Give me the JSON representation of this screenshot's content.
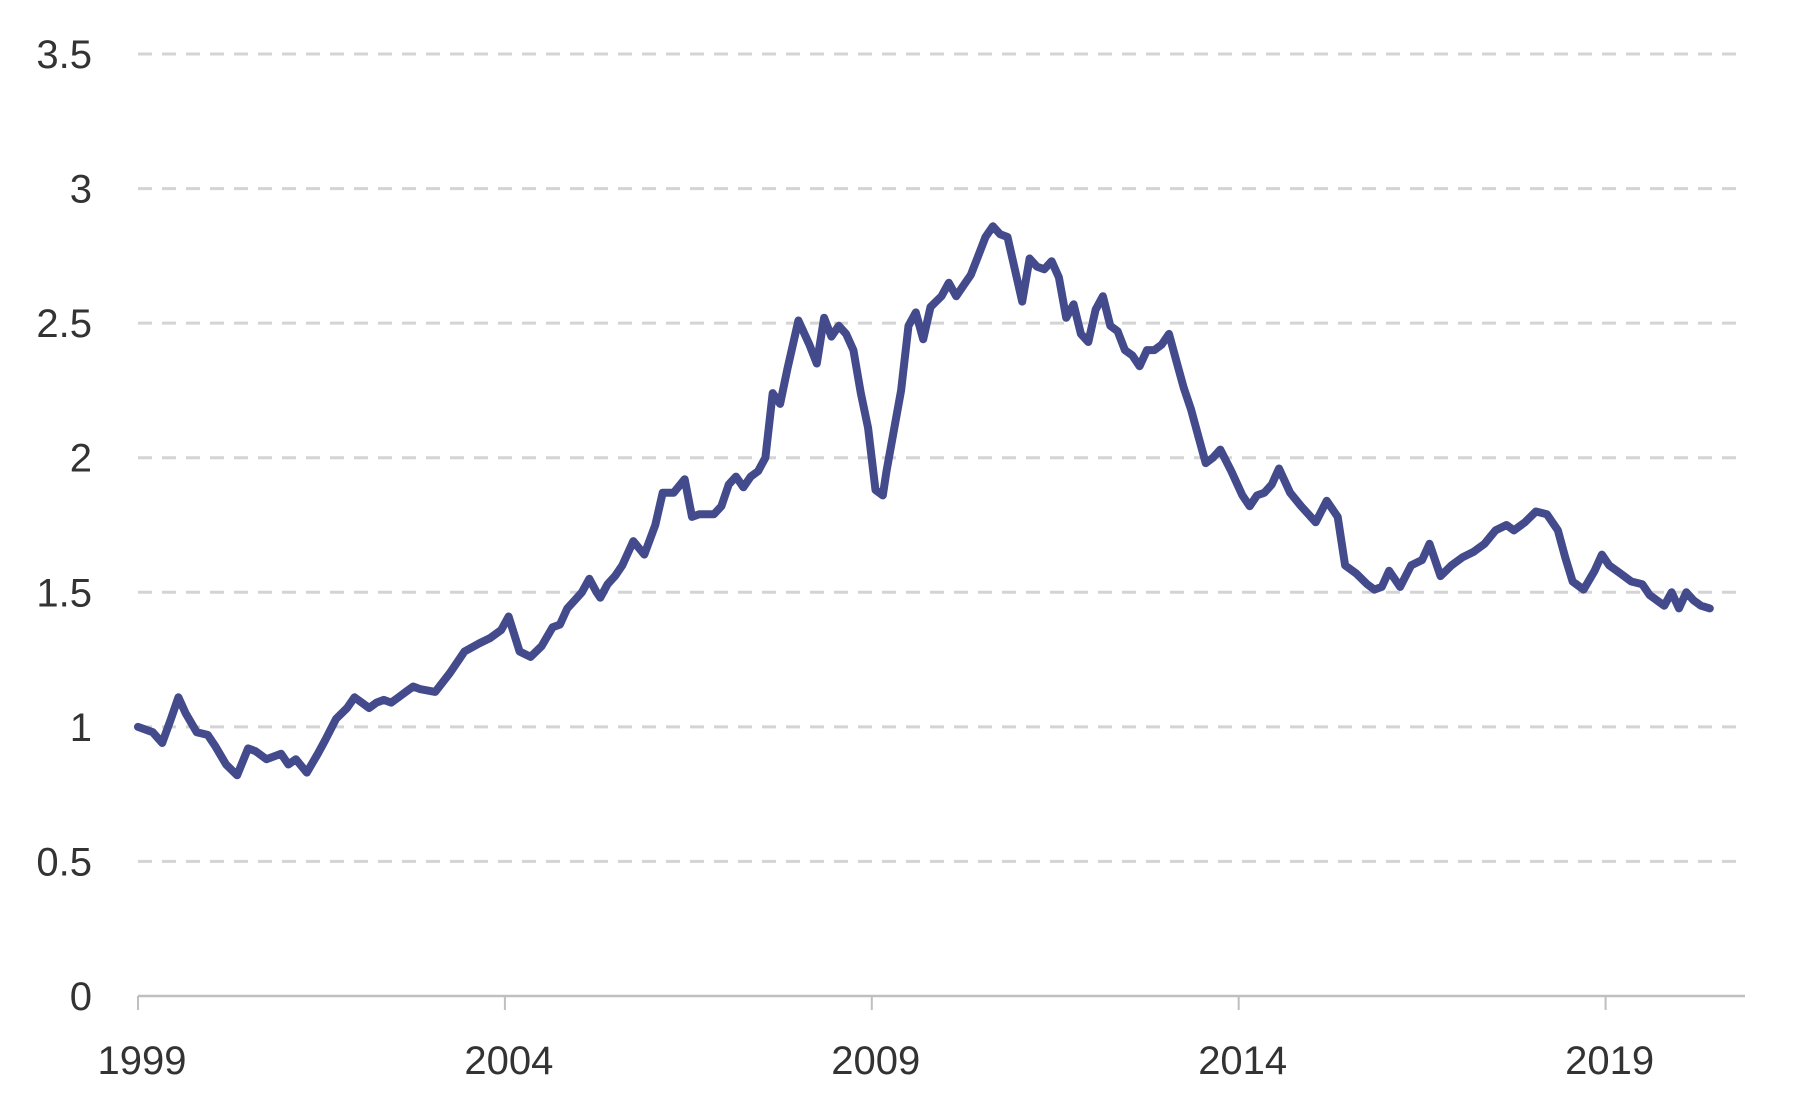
{
  "chart_data": {
    "type": "line",
    "title": "",
    "xlabel": "",
    "ylabel": "",
    "xlim": [
      1999.0,
      2020.9
    ],
    "ylim": [
      0,
      3.5
    ],
    "y_ticks": [
      0,
      0.5,
      1,
      1.5,
      2,
      2.5,
      3,
      3.5
    ],
    "y_tick_labels": [
      "0",
      "0.5",
      "1",
      "1.5",
      "2",
      "2.5",
      "3",
      "3.5"
    ],
    "x_ticks": [
      1999,
      2004,
      2009,
      2014,
      2019
    ],
    "x_tick_labels": [
      "1999",
      "2004",
      "2009",
      "2014",
      "2019"
    ],
    "grid": true,
    "legend": "none",
    "series": [
      {
        "color": "#434b8c",
        "x": [
          1999.0,
          1999.2,
          1999.33,
          1999.45,
          1999.55,
          1999.65,
          1999.8,
          1999.95,
          2000.05,
          2000.2,
          2000.35,
          2000.5,
          2000.6,
          2000.75,
          2000.95,
          2001.05,
          2001.15,
          2001.3,
          2001.45,
          2001.55,
          2001.7,
          2001.85,
          2001.95,
          2002.05,
          2002.15,
          2002.25,
          2002.35,
          2002.45,
          2002.55,
          2002.65,
          2002.75,
          2002.85,
          2003.05,
          2003.25,
          2003.45,
          2003.65,
          2003.8,
          2003.95,
          2004.05,
          2004.2,
          2004.35,
          2004.5,
          2004.65,
          2004.75,
          2004.85,
          2004.95,
          2005.05,
          2005.15,
          2005.25,
          2005.3,
          2005.4,
          2005.5,
          2005.6,
          2005.75,
          2005.9,
          2006.05,
          2006.15,
          2006.3,
          2006.45,
          2006.55,
          2006.65,
          2006.75,
          2006.85,
          2006.95,
          2007.05,
          2007.15,
          2007.25,
          2007.35,
          2007.45,
          2007.55,
          2007.65,
          2007.75,
          2007.85,
          2008.0,
          2008.15,
          2008.25,
          2008.35,
          2008.45,
          2008.55,
          2008.65,
          2008.75,
          2008.85,
          2008.95,
          2009.05,
          2009.15,
          2009.2,
          2009.3,
          2009.4,
          2009.5,
          2009.6,
          2009.7,
          2009.8,
          2009.95,
          2010.05,
          2010.15,
          2010.25,
          2010.35,
          2010.45,
          2010.55,
          2010.65,
          2010.75,
          2010.85,
          2011.05,
          2011.15,
          2011.25,
          2011.35,
          2011.45,
          2011.55,
          2011.65,
          2011.75,
          2011.85,
          2011.95,
          2012.05,
          2012.15,
          2012.25,
          2012.35,
          2012.45,
          2012.55,
          2012.65,
          2012.75,
          2012.85,
          2012.95,
          2013.05,
          2013.15,
          2013.25,
          2013.35,
          2013.45,
          2013.55,
          2013.65,
          2013.75,
          2013.9,
          2014.05,
          2014.15,
          2014.25,
          2014.35,
          2014.45,
          2014.55,
          2014.7,
          2014.85,
          2014.95,
          2015.05,
          2015.2,
          2015.35,
          2015.45,
          2015.6,
          2015.75,
          2015.85,
          2015.95,
          2016.05,
          2016.2,
          2016.35,
          2016.5,
          2016.6,
          2016.75,
          2016.9,
          2017.05,
          2017.2,
          2017.35,
          2017.5,
          2017.65,
          2017.75,
          2017.9,
          2018.05,
          2018.2,
          2018.35,
          2018.45,
          2018.55,
          2018.7,
          2018.85,
          2018.95,
          2019.05,
          2019.2,
          2019.35,
          2019.5,
          2019.6,
          2019.7,
          2019.8,
          2019.9,
          2020.0,
          2020.1,
          2020.2,
          2020.3,
          2020.42
        ],
        "values": [
          1.0,
          0.98,
          0.94,
          1.03,
          1.11,
          1.05,
          0.98,
          0.97,
          0.93,
          0.86,
          0.82,
          0.92,
          0.91,
          0.88,
          0.9,
          0.86,
          0.88,
          0.83,
          0.9,
          0.95,
          1.03,
          1.07,
          1.11,
          1.09,
          1.07,
          1.09,
          1.1,
          1.09,
          1.11,
          1.13,
          1.15,
          1.14,
          1.13,
          1.2,
          1.28,
          1.31,
          1.33,
          1.36,
          1.41,
          1.28,
          1.26,
          1.3,
          1.37,
          1.38,
          1.44,
          1.47,
          1.5,
          1.55,
          1.5,
          1.48,
          1.53,
          1.56,
          1.6,
          1.69,
          1.64,
          1.75,
          1.87,
          1.87,
          1.92,
          1.78,
          1.79,
          1.79,
          1.79,
          1.82,
          1.9,
          1.93,
          1.89,
          1.93,
          1.95,
          2.0,
          2.24,
          2.2,
          2.33,
          2.51,
          2.42,
          2.35,
          2.52,
          2.45,
          2.49,
          2.46,
          2.4,
          2.24,
          2.11,
          1.88,
          1.86,
          1.95,
          2.1,
          2.25,
          2.49,
          2.54,
          2.44,
          2.56,
          2.6,
          2.65,
          2.6,
          2.64,
          2.68,
          2.75,
          2.82,
          2.86,
          2.83,
          2.82,
          2.58,
          2.74,
          2.71,
          2.7,
          2.73,
          2.67,
          2.52,
          2.57,
          2.46,
          2.43,
          2.55,
          2.6,
          2.49,
          2.47,
          2.4,
          2.38,
          2.34,
          2.4,
          2.4,
          2.42,
          2.46,
          2.36,
          2.26,
          2.18,
          2.08,
          1.98,
          2.0,
          2.03,
          1.95,
          1.86,
          1.82,
          1.86,
          1.87,
          1.9,
          1.96,
          1.87,
          1.82,
          1.79,
          1.76,
          1.84,
          1.78,
          1.6,
          1.57,
          1.53,
          1.51,
          1.52,
          1.58,
          1.52,
          1.6,
          1.62,
          1.68,
          1.56,
          1.6,
          1.63,
          1.65,
          1.68,
          1.73,
          1.75,
          1.73,
          1.76,
          1.8,
          1.79,
          1.73,
          1.63,
          1.54,
          1.51,
          1.58,
          1.64,
          1.6,
          1.57,
          1.54,
          1.53,
          1.49,
          1.47,
          1.45,
          1.5,
          1.44,
          1.5,
          1.47,
          1.45,
          1.44
        ]
      }
    ]
  }
}
